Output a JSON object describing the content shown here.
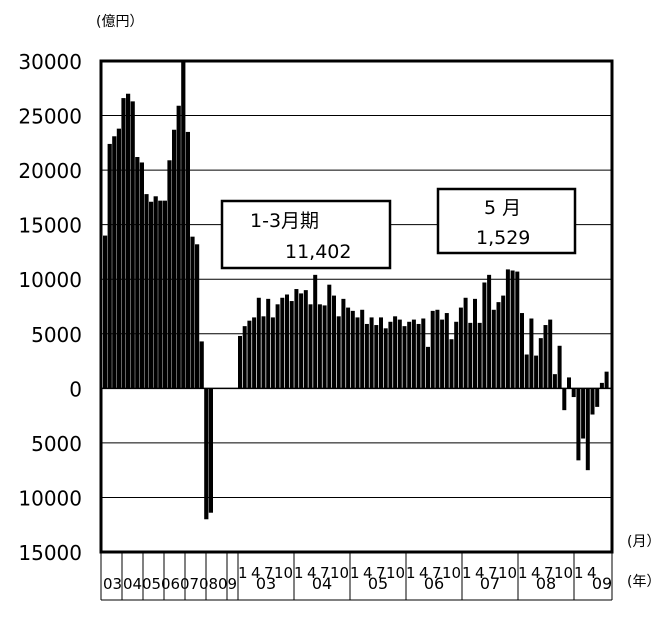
{
  "chart_data": {
    "type": "bar",
    "y_unit_label": "(億円）",
    "x_unit_month_label": "(月）",
    "x_unit_year_label": "(年）",
    "ylim": [
      -15000,
      30000
    ],
    "y_ticks": [
      30000,
      25000,
      20000,
      15000,
      10000,
      5000,
      0,
      -5000,
      -10000,
      -15000
    ],
    "y_tick_labels": [
      "30000",
      "25000",
      "20000",
      "15000",
      "10000",
      "5000",
      "0",
      "5000",
      "10000",
      "15000"
    ],
    "grid": true,
    "bar_color": "#000000",
    "annual": {
      "categories": [
        "03",
        "04",
        "05",
        "06",
        "07",
        "08",
        "09"
      ],
      "label_row": "030405060708‘09",
      "values": []
    },
    "monthly": {
      "start": "2003-01",
      "values": [
        4800,
        5700,
        6200,
        6500,
        8300,
        6600,
        8200,
        6500,
        7700,
        8300,
        8600,
        8000,
        9100,
        8700,
        9000,
        7700,
        10400,
        7700,
        7600,
        9500,
        8500,
        6600,
        8200,
        7400,
        7100,
        6500,
        7200,
        5900,
        6500,
        5800,
        6500,
        5500,
        6100,
        6600,
        6300,
        5700,
        6100,
        6300,
        5900,
        6400,
        3800,
        7100,
        7200,
        6300,
        6900,
        4500,
        6100,
        7400,
        8300,
        6000,
        8200,
        6000,
        9700,
        10400,
        7200,
        7900,
        8500,
        10900,
        10800,
        10700,
        6900,
        3100,
        6400,
        3000,
        4600,
        5800,
        6300,
        1300,
        3900,
        -2000,
        1000,
        -800,
        -6600,
        -4600,
        -7500,
        -2400,
        -1700,
        500,
        1529
      ]
    },
    "early_bars": {
      "values": [
        14000,
        22400,
        23100,
        23800,
        26600,
        27000,
        26300,
        21200,
        20700,
        17800,
        17100,
        17600,
        17200,
        17200,
        20900,
        23700,
        25900,
        30000,
        23500,
        13900,
        13200,
        4300,
        -12000,
        -11400
      ]
    },
    "x_month_row_labels": [
      "1",
      "4",
      "7",
      "10",
      "1",
      "4",
      "7",
      "10",
      "1",
      "4",
      "7",
      "10",
      "1",
      "4",
      "7",
      "10",
      "1",
      "4",
      "7",
      "10",
      "1",
      "4",
      "7",
      "10",
      "1",
      "4"
    ],
    "x_year_row_labels": [
      "03",
      "04",
      "05",
      "06",
      "07",
      "08",
      "09"
    ],
    "left_year_labels": [
      "03",
      "04",
      "05",
      "06",
      "07",
      "08",
      "09"
    ],
    "annotations": [
      {
        "title": "1-3月期",
        "value": "11,402"
      },
      {
        "title": "5 月",
        "value": "1,529"
      }
    ]
  }
}
